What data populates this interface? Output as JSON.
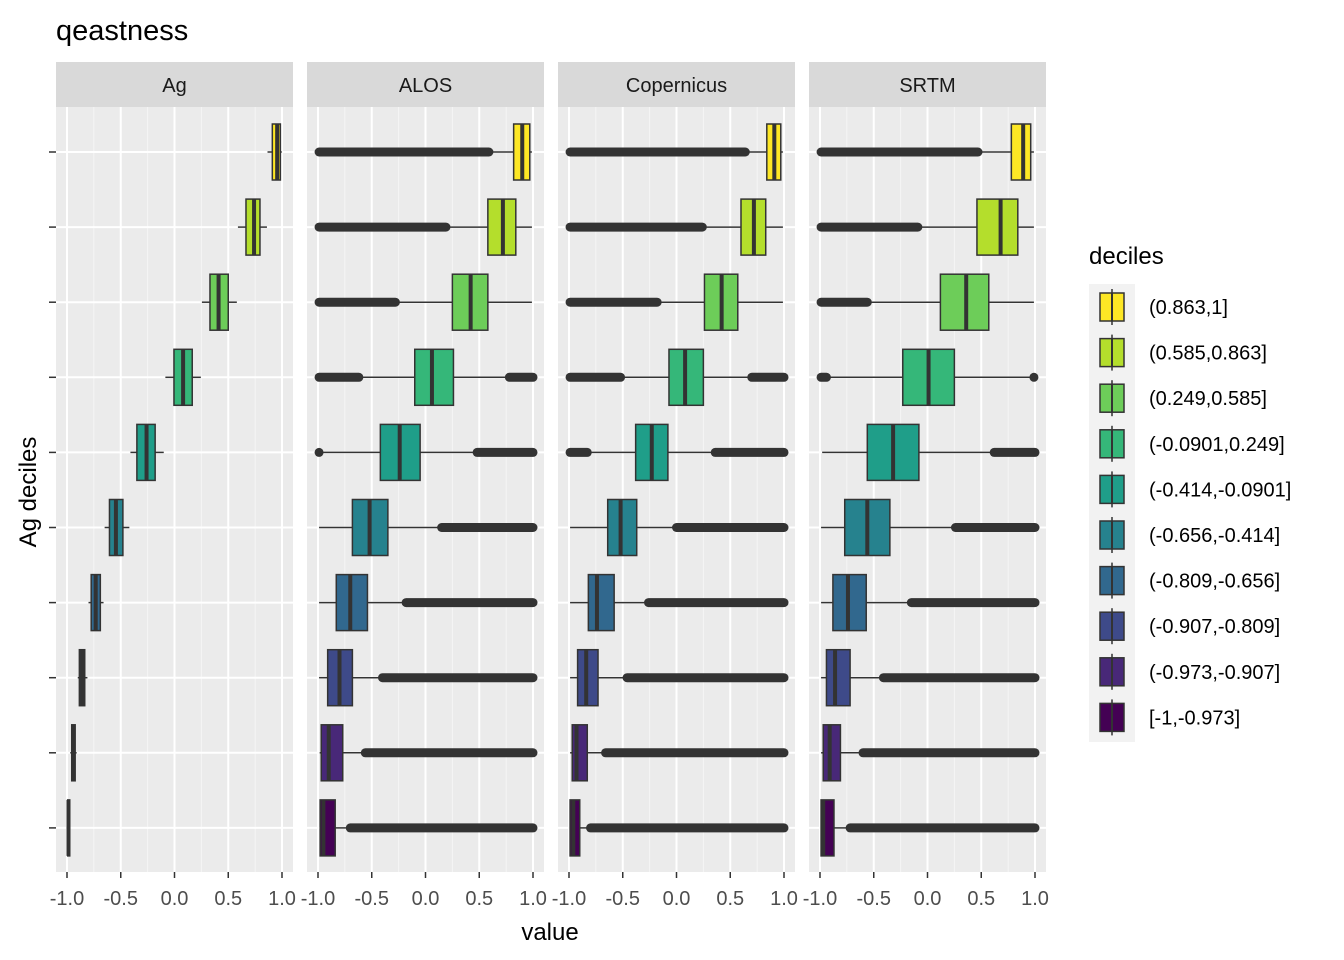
{
  "chart_data": {
    "type": "boxplot",
    "title": "qeastness",
    "xlabel": "value",
    "ylabel": "Ag deciles",
    "xlim": [
      -1.0,
      1.0
    ],
    "x_ticks": [
      -1.0,
      -0.5,
      0.0,
      0.5,
      1.0
    ],
    "x_tick_labels": [
      "-1.0",
      "-0.5",
      "0.0",
      "0.5",
      "1.0"
    ],
    "grid": true,
    "legend": {
      "title": "deciles",
      "position": "right",
      "order_top_to_bottom": [
        9,
        8,
        7,
        6,
        5,
        4,
        3,
        2,
        1,
        0
      ]
    },
    "deciles": [
      {
        "label": "[-1,-0.973]",
        "color": "#440154"
      },
      {
        "label": "(-0.973,-0.907]",
        "color": "#482878"
      },
      {
        "label": "(-0.907,-0.809]",
        "color": "#3E4A89"
      },
      {
        "label": "(-0.809,-0.656]",
        "color": "#31688E"
      },
      {
        "label": "(-0.656,-0.414]",
        "color": "#26828E"
      },
      {
        "label": "(-0.414,-0.0901]",
        "color": "#1F9E89"
      },
      {
        "label": "(-0.0901,0.249]",
        "color": "#35B779"
      },
      {
        "label": "(0.249,0.585]",
        "color": "#6DCD59"
      },
      {
        "label": "(0.585,0.863]",
        "color": "#B4DE2C"
      },
      {
        "label": "(0.863,1]",
        "color": "#FDE725"
      }
    ],
    "panels": [
      {
        "name": "Ag",
        "boxes": [
          {
            "wlo": -0.995,
            "q1": -0.993,
            "med": -0.986,
            "q3": -0.979,
            "whi": -0.973,
            "outliers": []
          },
          {
            "wlo": -0.97,
            "q1": -0.956,
            "med": -0.94,
            "q3": -0.924,
            "whi": -0.91,
            "outliers": []
          },
          {
            "wlo": -0.9,
            "q1": -0.885,
            "med": -0.86,
            "q3": -0.835,
            "whi": -0.81,
            "outliers": []
          },
          {
            "wlo": -0.8,
            "q1": -0.775,
            "med": -0.733,
            "q3": -0.69,
            "whi": -0.66,
            "outliers": []
          },
          {
            "wlo": -0.65,
            "q1": -0.605,
            "med": -0.545,
            "q3": -0.48,
            "whi": -0.42,
            "outliers": []
          },
          {
            "wlo": -0.41,
            "q1": -0.35,
            "med": -0.26,
            "q3": -0.18,
            "whi": -0.1,
            "outliers": []
          },
          {
            "wlo": -0.085,
            "q1": -0.005,
            "med": 0.08,
            "q3": 0.165,
            "whi": 0.245,
            "outliers": []
          },
          {
            "wlo": 0.255,
            "q1": 0.33,
            "med": 0.41,
            "q3": 0.5,
            "whi": 0.58,
            "outliers": []
          },
          {
            "wlo": 0.59,
            "q1": 0.665,
            "med": 0.74,
            "q3": 0.795,
            "whi": 0.86,
            "outliers": []
          },
          {
            "wlo": 0.865,
            "q1": 0.91,
            "med": 0.955,
            "q3": 0.985,
            "whi": 0.998,
            "outliers": []
          }
        ]
      },
      {
        "name": "ALOS",
        "boxes": [
          {
            "wlo": -0.985,
            "q1": -0.98,
            "med": -0.95,
            "q3": -0.84,
            "whi": -0.74,
            "outliers": [
              [
                -0.7,
                1.0
              ]
            ]
          },
          {
            "wlo": -0.985,
            "q1": -0.97,
            "med": -0.9,
            "q3": -0.77,
            "whi": -0.6,
            "outliers": [
              [
                -0.56,
                1.0
              ]
            ]
          },
          {
            "wlo": -0.99,
            "q1": -0.91,
            "med": -0.8,
            "q3": -0.68,
            "whi": -0.42,
            "outliers": [
              [
                -0.4,
                1.0
              ]
            ]
          },
          {
            "wlo": -0.99,
            "q1": -0.83,
            "med": -0.7,
            "q3": -0.54,
            "whi": -0.2,
            "outliers": [
              [
                -0.18,
                1.0
              ]
            ]
          },
          {
            "wlo": -0.99,
            "q1": -0.68,
            "med": -0.52,
            "q3": -0.35,
            "whi": 0.15,
            "outliers": [
              [
                0.15,
                1.0
              ]
            ]
          },
          {
            "wlo": -0.99,
            "q1": -0.42,
            "med": -0.24,
            "q3": -0.05,
            "whi": 0.47,
            "outliers": [
              [
                0.48,
                1.0
              ],
              [
                -0.99,
                -0.99
              ]
            ]
          },
          {
            "wlo": -0.6,
            "q1": -0.1,
            "med": 0.06,
            "q3": 0.26,
            "whi": 0.77,
            "outliers": [
              [
                -0.99,
                -0.62
              ],
              [
                0.78,
                1.0
              ]
            ]
          },
          {
            "wlo": -0.27,
            "q1": 0.25,
            "med": 0.42,
            "q3": 0.58,
            "whi": 0.99,
            "outliers": [
              [
                -0.99,
                -0.28
              ]
            ]
          },
          {
            "wlo": 0.2,
            "q1": 0.58,
            "med": 0.72,
            "q3": 0.84,
            "whi": 0.99,
            "outliers": [
              [
                -0.99,
                0.19
              ]
            ]
          },
          {
            "wlo": 0.6,
            "q1": 0.82,
            "med": 0.9,
            "q3": 0.97,
            "whi": 0.99,
            "outliers": [
              [
                -0.99,
                0.59
              ]
            ]
          }
        ]
      },
      {
        "name": "Copernicus",
        "boxes": [
          {
            "wlo": -0.99,
            "q1": -0.99,
            "med": -0.96,
            "q3": -0.9,
            "whi": -0.82,
            "outliers": [
              [
                -0.8,
                1.0
              ]
            ]
          },
          {
            "wlo": -0.99,
            "q1": -0.97,
            "med": -0.93,
            "q3": -0.83,
            "whi": -0.68,
            "outliers": [
              [
                -0.66,
                1.0
              ]
            ]
          },
          {
            "wlo": -0.99,
            "q1": -0.92,
            "med": -0.84,
            "q3": -0.73,
            "whi": -0.48,
            "outliers": [
              [
                -0.46,
                1.0
              ]
            ]
          },
          {
            "wlo": -0.99,
            "q1": -0.82,
            "med": -0.74,
            "q3": -0.58,
            "whi": -0.28,
            "outliers": [
              [
                -0.26,
                1.0
              ]
            ]
          },
          {
            "wlo": -0.99,
            "q1": -0.64,
            "med": -0.52,
            "q3": -0.37,
            "whi": 0.0,
            "outliers": [
              [
                0.0,
                1.0
              ]
            ]
          },
          {
            "wlo": -0.82,
            "q1": -0.38,
            "med": -0.23,
            "q3": -0.08,
            "whi": 0.35,
            "outliers": [
              [
                -0.99,
                -0.83
              ],
              [
                0.36,
                1.0
              ]
            ]
          },
          {
            "wlo": -0.5,
            "q1": -0.07,
            "med": 0.08,
            "q3": 0.25,
            "whi": 0.68,
            "outliers": [
              [
                -0.99,
                -0.52
              ],
              [
                0.7,
                1.0
              ]
            ]
          },
          {
            "wlo": -0.17,
            "q1": 0.26,
            "med": 0.42,
            "q3": 0.57,
            "whi": 0.99,
            "outliers": [
              [
                -0.99,
                -0.18
              ]
            ]
          },
          {
            "wlo": 0.25,
            "q1": 0.6,
            "med": 0.72,
            "q3": 0.83,
            "whi": 0.99,
            "outliers": [
              [
                -0.99,
                0.24
              ]
            ]
          },
          {
            "wlo": 0.65,
            "q1": 0.84,
            "med": 0.91,
            "q3": 0.97,
            "whi": 0.99,
            "outliers": [
              [
                -0.99,
                0.64
              ]
            ]
          }
        ]
      },
      {
        "name": "SRTM",
        "boxes": [
          {
            "wlo": -0.99,
            "q1": -0.99,
            "med": -0.97,
            "q3": -0.87,
            "whi": -0.74,
            "outliers": [
              [
                -0.72,
                1.0
              ]
            ]
          },
          {
            "wlo": -0.99,
            "q1": -0.97,
            "med": -0.91,
            "q3": -0.81,
            "whi": -0.62,
            "outliers": [
              [
                -0.6,
                1.0
              ]
            ]
          },
          {
            "wlo": -0.99,
            "q1": -0.94,
            "med": -0.86,
            "q3": -0.72,
            "whi": -0.43,
            "outliers": [
              [
                -0.41,
                1.0
              ]
            ]
          },
          {
            "wlo": -0.99,
            "q1": -0.88,
            "med": -0.74,
            "q3": -0.57,
            "whi": -0.17,
            "outliers": [
              [
                -0.15,
                1.0
              ]
            ]
          },
          {
            "wlo": -0.99,
            "q1": -0.77,
            "med": -0.56,
            "q3": -0.35,
            "whi": 0.24,
            "outliers": [
              [
                0.26,
                1.0
              ]
            ]
          },
          {
            "wlo": -0.98,
            "q1": -0.56,
            "med": -0.32,
            "q3": -0.08,
            "whi": 0.61,
            "outliers": [
              [
                0.62,
                1.0
              ]
            ]
          },
          {
            "wlo": -0.92,
            "q1": -0.23,
            "med": 0.01,
            "q3": 0.25,
            "whi": 0.98,
            "outliers": [
              [
                -0.99,
                -0.94
              ],
              [
                0.99,
                0.99
              ]
            ]
          },
          {
            "wlo": -0.55,
            "q1": 0.12,
            "med": 0.36,
            "q3": 0.57,
            "whi": 0.99,
            "outliers": [
              [
                -0.99,
                -0.56
              ]
            ]
          },
          {
            "wlo": -0.08,
            "q1": 0.46,
            "med": 0.68,
            "q3": 0.84,
            "whi": 0.99,
            "outliers": [
              [
                -0.99,
                -0.09
              ]
            ]
          },
          {
            "wlo": 0.48,
            "q1": 0.78,
            "med": 0.89,
            "q3": 0.96,
            "whi": 0.99,
            "outliers": [
              [
                -0.99,
                0.47
              ]
            ]
          }
        ]
      }
    ]
  }
}
